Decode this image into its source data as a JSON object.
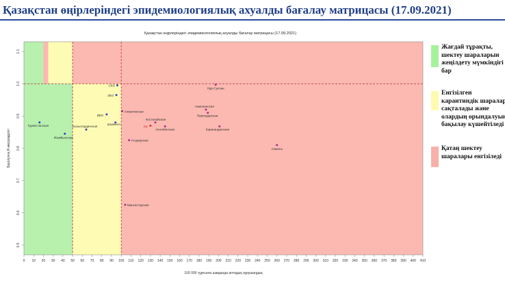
{
  "slide_title": "Қазақстан өңірлеріндегі эпидемиологиялық ахуалды бағалау матрицасы  (17.09.2021)",
  "chart_data": {
    "type": "scatter",
    "title": "Қазақстан өңірлеріндегі эпидемиологиялық ахуалды бағалау матрицасы (17.09.2021)",
    "xlabel": "100 000 тұрғынға шаққанда аптадық аурушаңдық",
    "ylabel": "Берілуінің R-мерзімділігі",
    "xlim": [
      0,
      410
    ],
    "ylim": [
      0.47,
      1.13
    ],
    "x_ticks": [
      0,
      10,
      20,
      30,
      40,
      50,
      60,
      70,
      80,
      90,
      100,
      110,
      120,
      130,
      140,
      150,
      160,
      170,
      180,
      190,
      200,
      210,
      220,
      230,
      240,
      250,
      260,
      270,
      280,
      290,
      300,
      310,
      320,
      330,
      340,
      350,
      360,
      370,
      380,
      390,
      400,
      410
    ],
    "y_ticks": [
      0.5,
      0.6,
      0.7,
      0.8,
      0.9,
      1.0,
      1.1
    ],
    "grid": false,
    "thresholds": {
      "x": [
        50,
        100
      ],
      "y": 1.0
    },
    "zones": {
      "green": "#b8f0ae",
      "yellow": "#fefcb4",
      "red": "#fcb9b1"
    },
    "points": [
      {
        "label": "Туркестанская",
        "x": 16,
        "y": 0.88,
        "color": "#3d3dc7"
      },
      {
        "label": "Жамбылская",
        "x": 42,
        "y": 0.845,
        "color": "#3d3dc7"
      },
      {
        "label": "Кызылординская",
        "x": 64,
        "y": 0.858,
        "color": "#3d3dc7"
      },
      {
        "label": "ВКО",
        "x": 85,
        "y": 0.905,
        "color": "#3d3dc7"
      },
      {
        "label": "ЗКО",
        "x": 95,
        "y": 0.965,
        "color": "#3d3dc7"
      },
      {
        "label": "СКО",
        "x": 96,
        "y": 0.995,
        "color": "#3d3dc7"
      },
      {
        "label": "Шымкент",
        "x": 94,
        "y": 0.88,
        "color": "#3d3dc7"
      },
      {
        "label": "Алматинская",
        "x": 101,
        "y": 0.915,
        "color": "#b0308a"
      },
      {
        "label": "Мангистауская",
        "x": 104,
        "y": 0.625,
        "color": "#b0308a"
      },
      {
        "label": "Атырауская",
        "x": 108,
        "y": 0.825,
        "color": "#b0308a"
      },
      {
        "label": "РК",
        "x": 130,
        "y": 0.87,
        "color": "#e03030"
      },
      {
        "label": "Костанайская",
        "x": 135,
        "y": 0.88,
        "color": "#b0308a"
      },
      {
        "label": "Актюбинская",
        "x": 145,
        "y": 0.868,
        "color": "#b0308a"
      },
      {
        "label": "Акмолинская",
        "x": 187,
        "y": 0.92,
        "color": "#b0308a"
      },
      {
        "label": "Павлодарская",
        "x": 189,
        "y": 0.91,
        "color": "#b0308a"
      },
      {
        "label": "Нур-Султан",
        "x": 197,
        "y": 0.997,
        "color": "#b0308a"
      },
      {
        "label": "Карагандинская",
        "x": 201,
        "y": 0.868,
        "color": "#b0308a"
      },
      {
        "label": "Алматы",
        "x": 260,
        "y": 0.81,
        "color": "#b0308a"
      }
    ]
  },
  "legend": [
    {
      "text": "Жағдай тұрақты, шектеу шараларын жеңілдету мүмкіндігі бар",
      "color": "#a6f29c"
    },
    {
      "text": "Енгізілген карантиндік шаралар сақталады және олардың орындалуын бақылау күшейтіледі",
      "color": "#fefbb0"
    },
    {
      "text": "Қатаң шектеу шаралары енгізіледі",
      "color": "#f7b1a8"
    }
  ]
}
